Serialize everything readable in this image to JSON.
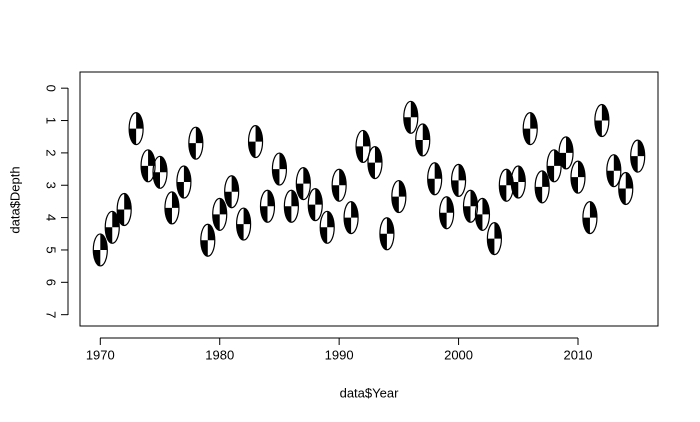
{
  "chart_data": {
    "type": "scatter",
    "x_label": "data$Year",
    "y_label": "data$Depth",
    "x": [
      1970,
      1971,
      1972,
      1973,
      1974,
      1975,
      1976,
      1977,
      1978,
      1979,
      1980,
      1981,
      1982,
      1983,
      1984,
      1985,
      1986,
      1987,
      1988,
      1989,
      1990,
      1991,
      1992,
      1993,
      1994,
      1995,
      1996,
      1997,
      1998,
      1999,
      2000,
      2001,
      2002,
      2003,
      2004,
      2005,
      2006,
      2007,
      2008,
      2009,
      2010,
      2011,
      2012,
      2013,
      2014,
      2015
    ],
    "values": [
      5.0,
      4.3,
      3.75,
      1.25,
      2.4,
      2.6,
      3.7,
      2.9,
      1.7,
      4.7,
      3.9,
      3.2,
      4.2,
      1.65,
      3.65,
      2.5,
      3.65,
      2.95,
      3.6,
      4.3,
      3.0,
      4.0,
      1.8,
      2.3,
      4.5,
      3.35,
      0.9,
      1.6,
      2.8,
      3.85,
      2.85,
      3.65,
      3.9,
      4.65,
      3.0,
      2.9,
      1.25,
      3.05,
      2.4,
      2.0,
      2.75,
      4.0,
      1.0,
      2.55,
      3.1,
      2.1
    ],
    "color": "#000000",
    "xlim": [
      1968.3,
      2016.7
    ],
    "ylim": [
      -0.5,
      7.35
    ],
    "y_reversed": true,
    "xticks": [
      1970,
      1980,
      1990,
      2000,
      2010
    ],
    "yticks": [
      0,
      1,
      2,
      3,
      4,
      5,
      6,
      7
    ]
  }
}
